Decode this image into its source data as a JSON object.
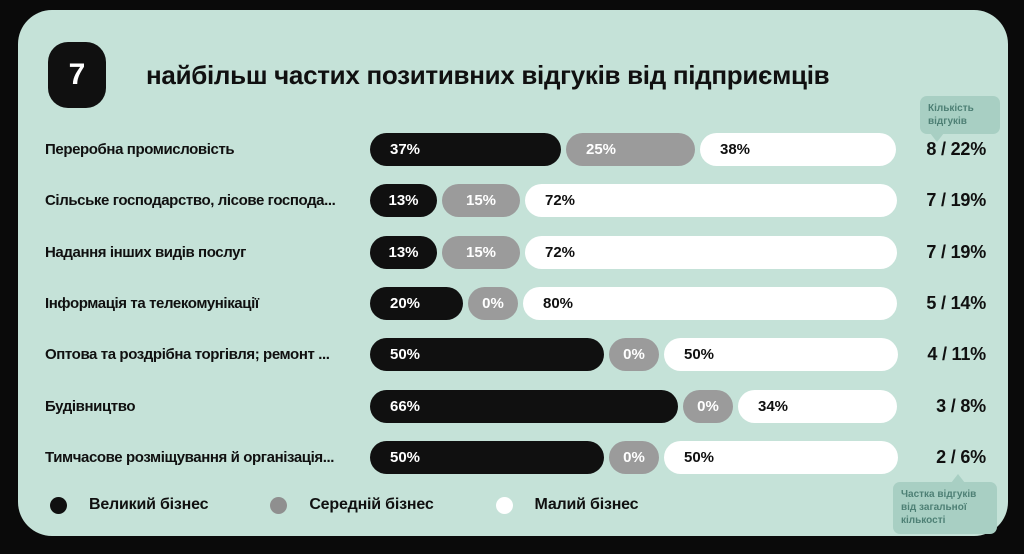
{
  "slide": {
    "badge": "7",
    "title": "найбільш частих позитивних відгуків від підприємців"
  },
  "annotations": {
    "top_tooltip": "Кількість відгуків",
    "bottom_tooltip": "Частка відгуків від загальної кількості"
  },
  "legend": [
    {
      "label": "Великий бізнес",
      "color": "#101010"
    },
    {
      "label": "Середній бізнес",
      "color": "#8f8f8f"
    },
    {
      "label": "Малий бізнес",
      "color": "#ffffff"
    }
  ],
  "colors": {
    "background_outer": "#0a0a0a",
    "card": "#c5e2d8",
    "segment_large": "#101010",
    "segment_medium": "#9b9b9b",
    "segment_small": "#ffffff",
    "tooltip_bg": "#a8cfc3",
    "tooltip_text": "#4e8075"
  },
  "chart_data": {
    "type": "bar",
    "orientation": "horizontal",
    "stacked": true,
    "value_suffix": "%",
    "title": "найбільш частих позитивних відгуків від підприємців",
    "categories": [
      "Переробна промисловість",
      "Сільське господарство, лісове господа...",
      "Надання інших видів послуг",
      "Інформація та телекомунікації",
      "Оптова та роздрібна торгівля; ремонт ...",
      "Будівництво",
      "Тимчасове розміщування й організація..."
    ],
    "series": [
      {
        "name": "Великий бізнес",
        "color": "#101010",
        "values": [
          37,
          13,
          13,
          20,
          50,
          66,
          50
        ]
      },
      {
        "name": "Середній бізнес",
        "color": "#9b9b9b",
        "values": [
          25,
          15,
          15,
          0,
          0,
          0,
          0
        ]
      },
      {
        "name": "Малий бізнес",
        "color": "#ffffff",
        "values": [
          38,
          72,
          72,
          80,
          50,
          34,
          50
        ]
      }
    ],
    "right_column_header": "Кількість відгуків",
    "right_column_footer": "Частка відгуків від загальної кількості",
    "right_column": [
      "8 / 22%",
      "7 / 19%",
      "7 / 19%",
      "5 / 14%",
      "4 / 11%",
      "3 / 8%",
      "2 / 6%"
    ],
    "legend_position": "bottom",
    "xlim": [
      0,
      100
    ]
  }
}
